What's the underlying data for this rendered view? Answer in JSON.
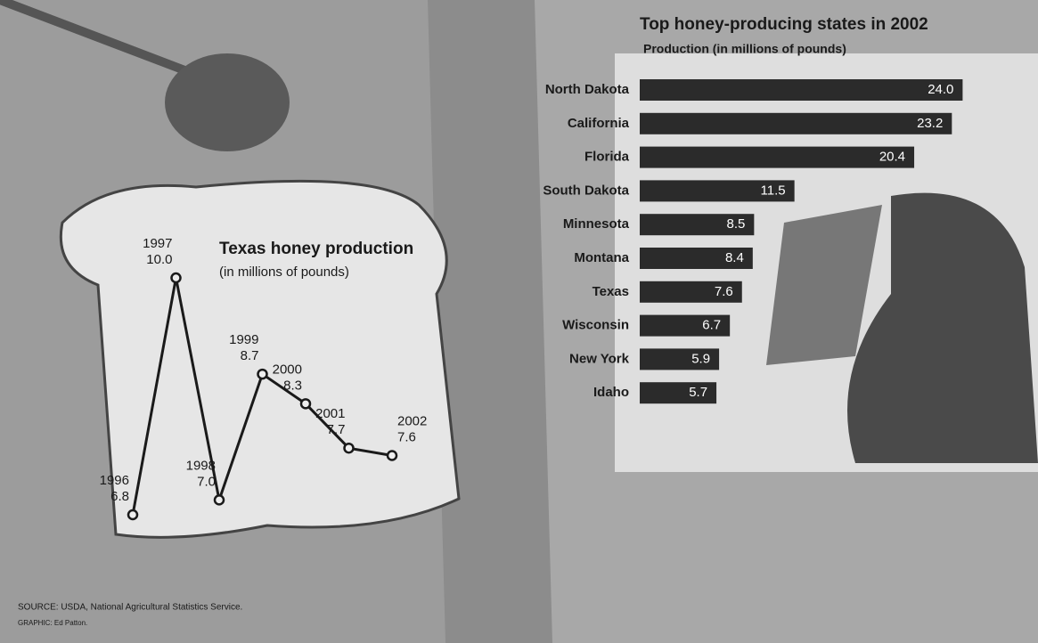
{
  "chart_data": [
    {
      "type": "line",
      "title": "Texas honey production",
      "subtitle": "(in millions of pounds)",
      "x": [
        1996,
        1997,
        1998,
        1999,
        2000,
        2001,
        2002
      ],
      "values": [
        6.8,
        10.0,
        7.0,
        8.7,
        8.3,
        7.7,
        7.6
      ],
      "value_labels": [
        "6.8",
        "10.0",
        "7.0",
        "8.7",
        "8.3",
        "7.7",
        "7.6"
      ],
      "color": "#1a1a1a"
    },
    {
      "type": "bar",
      "orientation": "horizontal",
      "title": "Top honey-producing states in 2002",
      "subtitle": "Production (in millions of pounds)",
      "categories": [
        "North Dakota",
        "California",
        "Florida",
        "South Dakota",
        "Minnesota",
        "Montana",
        "Texas",
        "Wisconsin",
        "New York",
        "Idaho"
      ],
      "values": [
        24.0,
        23.2,
        20.4,
        11.5,
        8.5,
        8.4,
        7.6,
        6.7,
        5.9,
        5.7
      ],
      "value_labels": [
        "24.0",
        "23.2",
        "20.4",
        "11.5",
        "8.5",
        "8.4",
        "7.6",
        "6.7",
        "5.9",
        "5.7"
      ],
      "color": "#2b2b2b"
    }
  ],
  "source": "SOURCE: USDA, National Agricultural Statistics Service.",
  "credit": "GRAPHIC: Ed Patton."
}
